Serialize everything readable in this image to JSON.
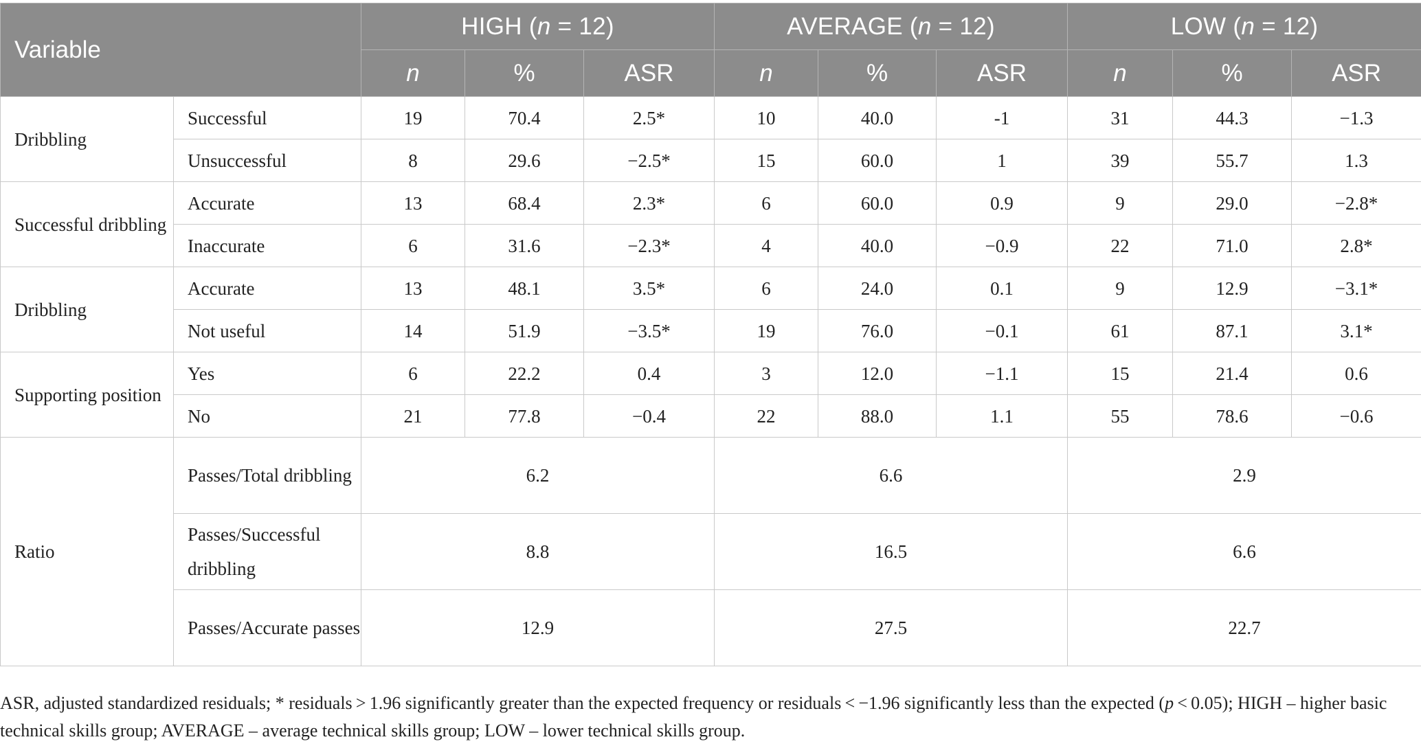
{
  "header": {
    "variable": "Variable",
    "groups": [
      {
        "pre": "HIGH (",
        "n": "n",
        "post": " = 12)"
      },
      {
        "pre": "AVERAGE (",
        "n": "n",
        "post": " = 12)"
      },
      {
        "pre": "LOW (",
        "n": "n",
        "post": " = 12)"
      }
    ],
    "subheaders": [
      "n",
      "%",
      "ASR"
    ]
  },
  "rows": [
    {
      "variable": "Dribbling",
      "category": "Successful",
      "values": [
        "19",
        "70.4",
        "2.5*",
        "10",
        "40.0",
        "-1",
        "31",
        "44.3",
        "−1.3"
      ]
    },
    {
      "category": "Unsuccessful",
      "values": [
        "8",
        "29.6",
        "−2.5*",
        "15",
        "60.0",
        "1",
        "39",
        "55.7",
        "1.3"
      ]
    },
    {
      "variable": "Successful dribbling",
      "category": "Accurate",
      "values": [
        "13",
        "68.4",
        "2.3*",
        "6",
        "60.0",
        "0.9",
        "9",
        "29.0",
        "−2.8*"
      ]
    },
    {
      "category": "Inaccurate",
      "values": [
        "6",
        "31.6",
        "−2.3*",
        "4",
        "40.0",
        "−0.9",
        "22",
        "71.0",
        "2.8*"
      ]
    },
    {
      "variable": "Dribbling",
      "category": "Accurate",
      "values": [
        "13",
        "48.1",
        "3.5*",
        "6",
        "24.0",
        "0.1",
        "9",
        "12.9",
        "−3.1*"
      ]
    },
    {
      "category": "Not useful",
      "values": [
        "14",
        "51.9",
        "−3.5*",
        "19",
        "76.0",
        "−0.1",
        "61",
        "87.1",
        "3.1*"
      ]
    },
    {
      "variable": "Supporting position",
      "category": "Yes",
      "values": [
        "6",
        "22.2",
        "0.4",
        "3",
        "12.0",
        "−1.1",
        "15",
        "21.4",
        "0.6"
      ]
    },
    {
      "category": "No",
      "values": [
        "21",
        "77.8",
        "−0.4",
        "22",
        "88.0",
        "1.1",
        "55",
        "78.6",
        "−0.6"
      ]
    }
  ],
  "ratio": {
    "variable": "Ratio",
    "rows": [
      {
        "category": "Passes/Total dribbling",
        "values": [
          "6.2",
          "6.6",
          "2.9"
        ]
      },
      {
        "category": "Passes/Successful dribbling",
        "values": [
          "8.8",
          "16.5",
          "6.6"
        ]
      },
      {
        "category": "Passes/Accurate passes",
        "values": [
          "12.9",
          "27.5",
          "22.7"
        ]
      }
    ]
  },
  "footnote": {
    "part1": "ASR, adjusted standardized residuals; * residuals > 1.96 significantly greater than the expected frequency or residuals < −1.96 significantly less than the expected (",
    "p": "p",
    "part2": " < 0.05); HIGH – higher basic technical skills group; AVERAGE – average technical skills group; LOW – lower technical skills group."
  }
}
